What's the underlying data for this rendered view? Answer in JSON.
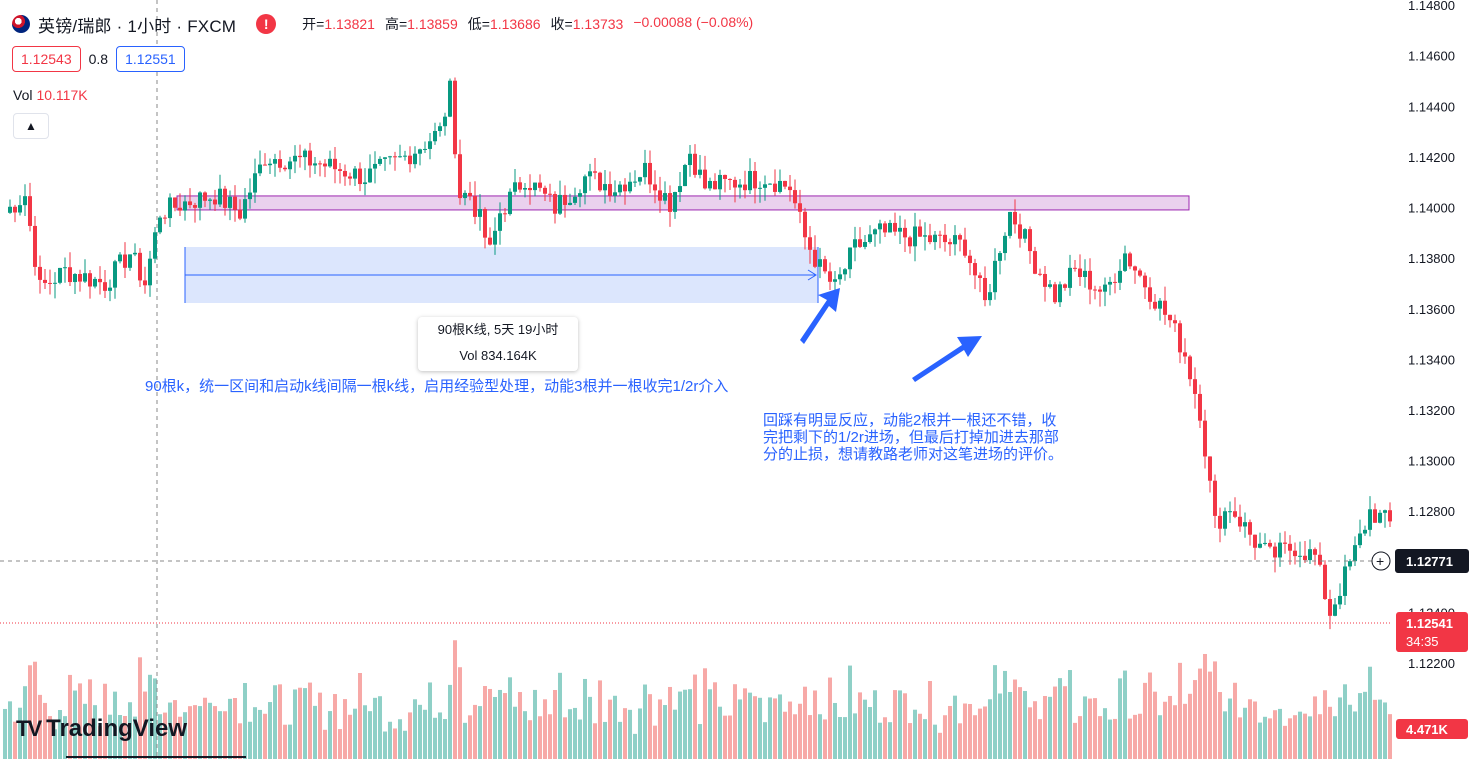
{
  "header": {
    "title": "英镑/瑞郎 · 1小时 · FXCM",
    "warning_icon": "!",
    "ohlc": {
      "open_label": "开=",
      "open": "1.13821",
      "high_label": "高=",
      "high": "1.13859",
      "low_label": "低=",
      "low": "1.13686",
      "close_label": "收=",
      "close": "1.13733",
      "change": "−0.00088 (−0.08%)"
    }
  },
  "quotes": {
    "sell": "1.12543",
    "spread": "0.8",
    "buy": "1.12551"
  },
  "volume_legend": {
    "label": "Vol",
    "value": "10.117K"
  },
  "tooltip": {
    "line1": "90根K线, 5天 19小时",
    "line2": "Vol 834.164K"
  },
  "annotations": {
    "note1": "90根k，统一区间和启动k线间隔一根k线，启用经验型处理，动能3根并一根收完1/2r介入",
    "note2": "回踩有明显反应，动能2根并一根还不错，收完把剩下的1/2r进场，但最后打掉加进去那部分的止损，想请教路老师对这笔进场的评价。"
  },
  "price_labels": {
    "crosshair": "1.12771",
    "last": "1.12541",
    "countdown": "34:35",
    "volume": "4.471K"
  },
  "logo": "TradingView",
  "colors": {
    "up": "#089981",
    "down": "#f23645",
    "up_vol": "#8fd0c7",
    "down_vol": "#f7a9a7",
    "zone": "#e1bee7",
    "range": "#c5d5fb",
    "accent": "#2962ff"
  },
  "chart_data": {
    "type": "candlestick",
    "symbol": "GBPCHF",
    "timeframe": "1H",
    "y_ticks": [
      1.148,
      1.146,
      1.144,
      1.142,
      1.14,
      1.138,
      1.136,
      1.134,
      1.132,
      1.13,
      1.128,
      1.126,
      1.124,
      1.122
    ],
    "ylim": [
      1.1207,
      1.1482
    ],
    "resistance_zone": [
      1.1397,
      1.1403
    ],
    "measured_range": {
      "low": 1.1372,
      "high": 1.1392,
      "bars": 90
    },
    "anchors": [
      [
        0,
        1.1398
      ],
      [
        4,
        1.1405
      ],
      [
        7,
        1.1368
      ],
      [
        12,
        1.1375
      ],
      [
        20,
        1.137
      ],
      [
        25,
        1.1382
      ],
      [
        28,
        1.137
      ],
      [
        31,
        1.1398
      ],
      [
        36,
        1.1402
      ],
      [
        42,
        1.1405
      ],
      [
        47,
        1.1398
      ],
      [
        52,
        1.142
      ],
      [
        62,
        1.1418
      ],
      [
        72,
        1.1412
      ],
      [
        80,
        1.142
      ],
      [
        87,
        1.143
      ],
      [
        89,
        1.1446
      ],
      [
        91,
        1.1405
      ],
      [
        93,
        1.1405
      ],
      [
        95,
        1.1395
      ],
      [
        97,
        1.1382
      ],
      [
        99,
        1.1398
      ],
      [
        104,
        1.1412
      ],
      [
        110,
        1.14
      ],
      [
        116,
        1.1412
      ],
      [
        122,
        1.1408
      ],
      [
        128,
        1.1415
      ],
      [
        133,
        1.1402
      ],
      [
        137,
        1.1422
      ],
      [
        140,
        1.1408
      ],
      [
        146,
        1.141
      ],
      [
        152,
        1.1412
      ],
      [
        157,
        1.1408
      ],
      [
        160,
        1.1388
      ],
      [
        163,
        1.1376
      ],
      [
        166,
        1.1368
      ],
      [
        170,
        1.1384
      ],
      [
        175,
        1.139
      ],
      [
        183,
        1.1388
      ],
      [
        192,
        1.1385
      ],
      [
        196,
        1.1362
      ],
      [
        199,
        1.1385
      ],
      [
        201,
        1.1398
      ],
      [
        203,
        1.1392
      ],
      [
        206,
        1.1378
      ],
      [
        210,
        1.1365
      ],
      [
        214,
        1.1375
      ],
      [
        220,
        1.1366
      ],
      [
        224,
        1.1382
      ],
      [
        228,
        1.137
      ],
      [
        233,
        1.1355
      ],
      [
        236,
        1.1342
      ],
      [
        239,
        1.132
      ],
      [
        242,
        1.1275
      ],
      [
        245,
        1.1282
      ],
      [
        250,
        1.1268
      ],
      [
        253,
        1.1262
      ],
      [
        258,
        1.1266
      ],
      [
        262,
        1.1262
      ],
      [
        265,
        1.124
      ],
      [
        270,
        1.1264
      ],
      [
        273,
        1.128
      ],
      [
        277,
        1.1275
      ],
      [
        280,
        1.1254
      ]
    ],
    "n_bars": 281
  }
}
